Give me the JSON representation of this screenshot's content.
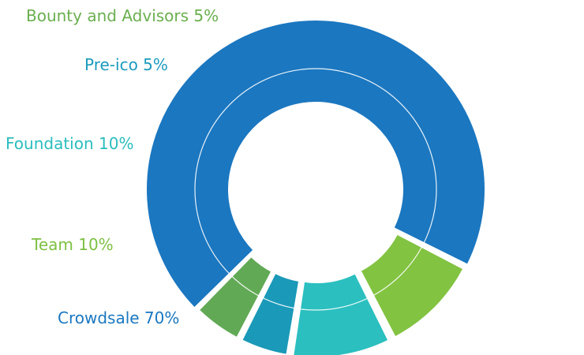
{
  "chart_data": {
    "type": "pie",
    "subtype": "donut",
    "slices": [
      {
        "label": "Crowdsale 70%",
        "name": "Crowdsale",
        "value": 70,
        "color": "#1b77c0",
        "exploded": false
      },
      {
        "label": "Team 10%",
        "name": "Team",
        "value": 10,
        "color": "#82c341",
        "exploded": true
      },
      {
        "label": "Foundation 10%",
        "name": "Foundation",
        "value": 10,
        "color": "#2bbfbf",
        "exploded": true
      },
      {
        "label": "Pre-ico 5%",
        "name": "Pre-ico",
        "value": 5,
        "color": "#1a99b8",
        "exploded": true
      },
      {
        "label": "Bounty and Advisors 5%",
        "name": "Bounty and Advisors",
        "value": 5,
        "color": "#62a956",
        "exploded": true
      }
    ],
    "labels": {
      "bounty": "Bounty and Advisors 5%",
      "preico": "Pre-ico 5%",
      "foundation": "Foundation 10%",
      "team": "Team 10%",
      "crowdsale": "Crowdsale 70%"
    },
    "label_colors": {
      "bounty": "#6aaf4f",
      "preico": "#1a9bbd",
      "foundation": "#2bbdbd",
      "team": "#7ec043",
      "crowdsale": "#1b77c0"
    },
    "legend": "none",
    "title": ""
  }
}
